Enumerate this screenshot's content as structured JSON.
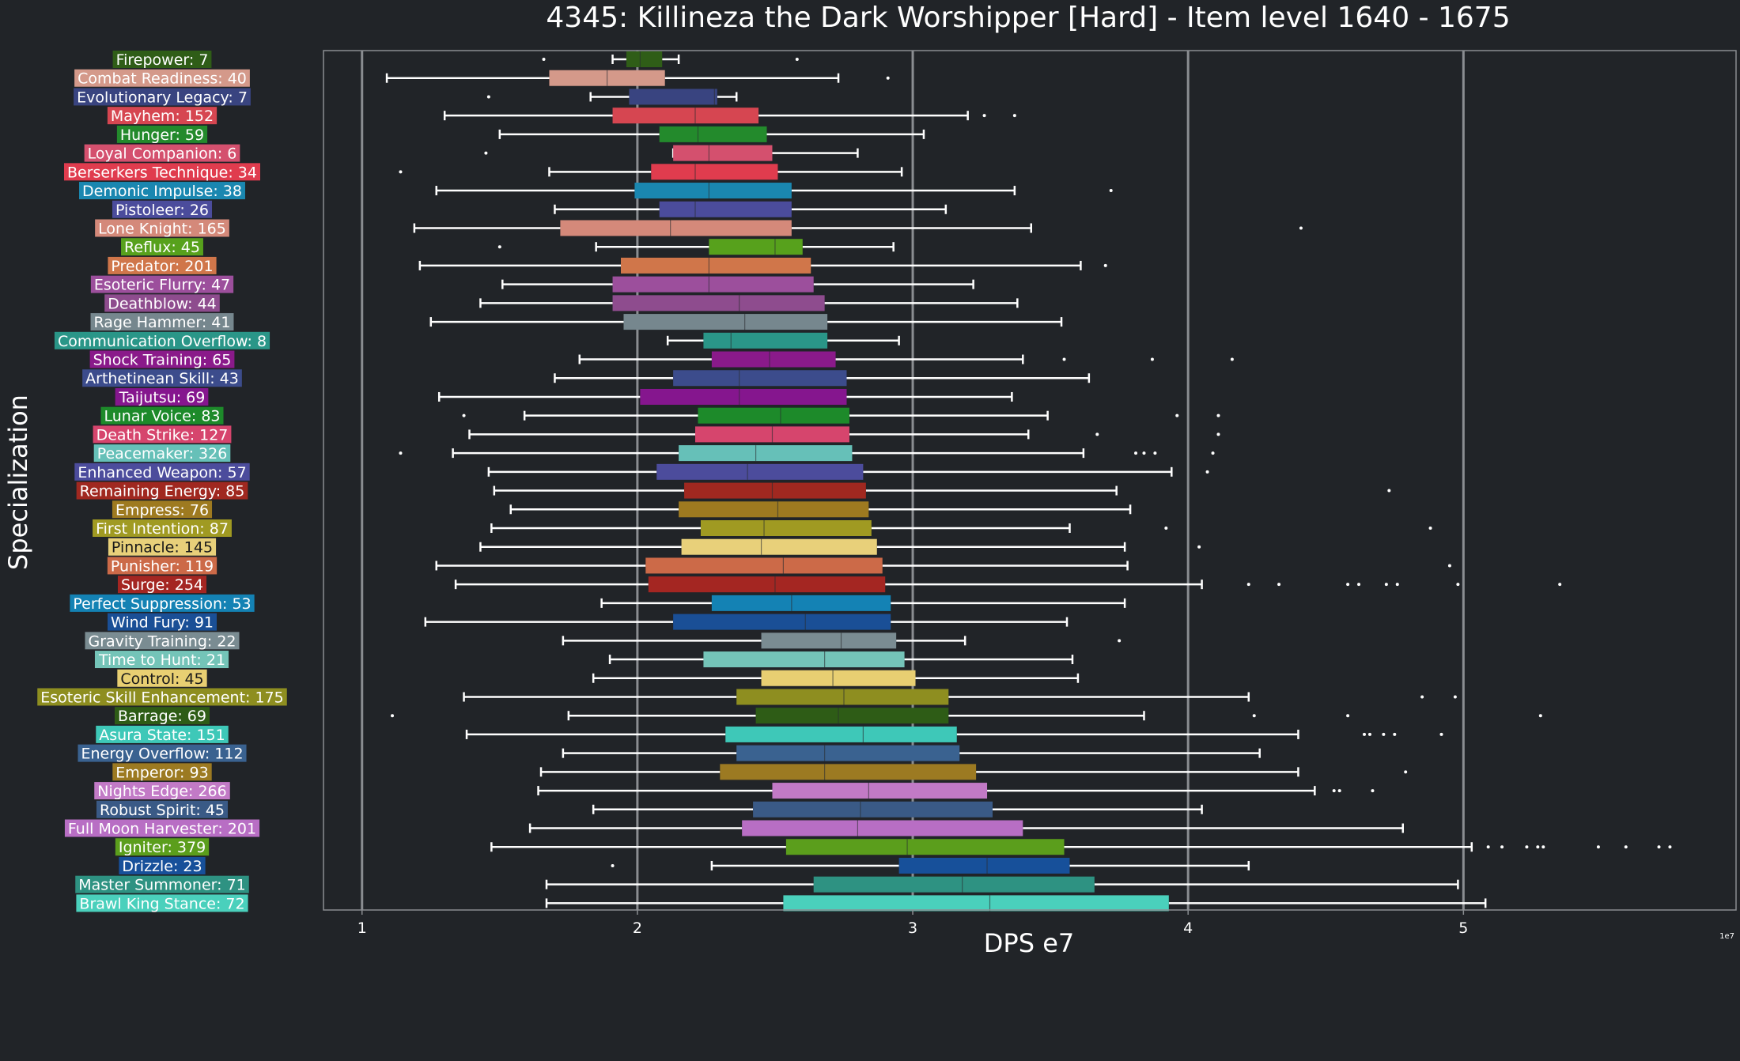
{
  "chart_data": {
    "type": "box",
    "title": "4345: Killineza the Dark Worshipper [Hard] - Item level 1640 - 1675",
    "xlabel": "DPS e7",
    "ylabel": "Specialization",
    "x_offset_label": "1e7",
    "xlim": [
      0.86,
      5.99
    ],
    "xticks": [
      1,
      2,
      3,
      4,
      5
    ],
    "grid": "vertical",
    "colors": {
      "background": "#212428",
      "axis": "#8a8d91",
      "grid": "#8a8d91",
      "text": "#ffffff",
      "whisker": "#ffffff"
    },
    "series": [
      {
        "label": "Firepower: 7",
        "color": "#2f5d17",
        "whisker_low": 1.91,
        "q1": 1.96,
        "median": 2.01,
        "q3": 2.09,
        "whisker_high": 2.15,
        "outliers": [
          1.66,
          2.58
        ]
      },
      {
        "label": "Combat Readiness: 40",
        "color": "#d4998a",
        "whisker_low": 1.09,
        "q1": 1.68,
        "median": 1.89,
        "q3": 2.1,
        "whisker_high": 2.73,
        "outliers": [
          2.91
        ]
      },
      {
        "label": "Evolutionary Legacy: 7",
        "color": "#394480",
        "whisker_low": 1.83,
        "q1": 1.97,
        "median": 2.28,
        "q3": 2.29,
        "whisker_high": 2.36,
        "outliers": [
          1.46
        ]
      },
      {
        "label": "Mayhem: 152",
        "color": "#d64651",
        "whisker_low": 1.3,
        "q1": 1.91,
        "median": 2.21,
        "q3": 2.44,
        "whisker_high": 3.2,
        "outliers": [
          3.26,
          3.37
        ]
      },
      {
        "label": "Hunger: 59",
        "color": "#238a2c",
        "whisker_low": 1.5,
        "q1": 2.08,
        "median": 2.22,
        "q3": 2.47,
        "whisker_high": 3.04,
        "outliers": []
      },
      {
        "label": "Loyal Companion: 6",
        "color": "#d4506e",
        "whisker_low": 2.13,
        "q1": 2.13,
        "median": 2.26,
        "q3": 2.49,
        "whisker_high": 2.8,
        "outliers": [
          1.45
        ]
      },
      {
        "label": "Berserkers Technique: 34",
        "color": "#e03c4e",
        "whisker_low": 1.68,
        "q1": 2.05,
        "median": 2.21,
        "q3": 2.51,
        "whisker_high": 2.96,
        "outliers": [
          1.14
        ]
      },
      {
        "label": "Demonic Impulse: 38",
        "color": "#1a87b0",
        "whisker_low": 1.27,
        "q1": 1.99,
        "median": 2.26,
        "q3": 2.56,
        "whisker_high": 3.37,
        "outliers": [
          3.72
        ]
      },
      {
        "label": "Pistoleer: 26",
        "color": "#4b4c9c",
        "whisker_low": 1.7,
        "q1": 2.08,
        "median": 2.21,
        "q3": 2.56,
        "whisker_high": 3.12,
        "outliers": []
      },
      {
        "label": "Lone Knight: 165",
        "color": "#d4897a",
        "whisker_low": 1.19,
        "q1": 1.72,
        "median": 2.12,
        "q3": 2.56,
        "whisker_high": 3.43,
        "outliers": [
          4.41
        ]
      },
      {
        "label": "Reflux: 45",
        "color": "#57a11c",
        "whisker_low": 1.85,
        "q1": 2.26,
        "median": 2.5,
        "q3": 2.6,
        "whisker_high": 2.93,
        "outliers": [
          1.5
        ]
      },
      {
        "label": "Predator: 201",
        "color": "#d0764a",
        "whisker_low": 1.21,
        "q1": 1.94,
        "median": 2.26,
        "q3": 2.63,
        "whisker_high": 3.61,
        "outliers": [
          3.7
        ]
      },
      {
        "label": "Esoteric Flurry: 47",
        "color": "#9c4f9c",
        "whisker_low": 1.51,
        "q1": 1.91,
        "median": 2.26,
        "q3": 2.64,
        "whisker_high": 3.22,
        "outliers": []
      },
      {
        "label": "Deathblow: 44",
        "color": "#8e4c8e",
        "whisker_low": 1.43,
        "q1": 1.91,
        "median": 2.37,
        "q3": 2.68,
        "whisker_high": 3.38,
        "outliers": []
      },
      {
        "label": "Rage Hammer: 41",
        "color": "#76878e",
        "whisker_low": 1.25,
        "q1": 1.95,
        "median": 2.39,
        "q3": 2.69,
        "whisker_high": 3.54,
        "outliers": []
      },
      {
        "label": "Communication Overflow: 8",
        "color": "#2a9688",
        "whisker_low": 2.11,
        "q1": 2.24,
        "median": 2.34,
        "q3": 2.69,
        "whisker_high": 2.95,
        "outliers": []
      },
      {
        "label": "Shock Training: 65",
        "color": "#8a1a8a",
        "whisker_low": 1.79,
        "q1": 2.27,
        "median": 2.48,
        "q3": 2.72,
        "whisker_high": 3.4,
        "outliers": [
          3.55,
          3.87,
          4.16
        ]
      },
      {
        "label": "Arthetinean Skill: 43",
        "color": "#3c4c8c",
        "whisker_low": 1.7,
        "q1": 2.13,
        "median": 2.37,
        "q3": 2.76,
        "whisker_high": 3.64,
        "outliers": []
      },
      {
        "label": "Taijutsu: 69",
        "color": "#85168e",
        "whisker_low": 1.28,
        "q1": 2.01,
        "median": 2.37,
        "q3": 2.76,
        "whisker_high": 3.36,
        "outliers": []
      },
      {
        "label": "Lunar Voice: 83",
        "color": "#1d8a2a",
        "whisker_low": 1.59,
        "q1": 2.22,
        "median": 2.52,
        "q3": 2.77,
        "whisker_high": 3.49,
        "outliers": [
          1.37,
          3.96,
          4.11
        ]
      },
      {
        "label": "Death Strike: 127",
        "color": "#d6456d",
        "whisker_low": 1.39,
        "q1": 2.21,
        "median": 2.49,
        "q3": 2.77,
        "whisker_high": 3.42,
        "outliers": [
          3.67,
          4.11
        ]
      },
      {
        "label": "Peacemaker: 326",
        "color": "#66c0b8",
        "whisker_low": 1.33,
        "q1": 2.15,
        "median": 2.43,
        "q3": 2.78,
        "whisker_high": 3.62,
        "outliers": [
          1.14,
          3.81,
          3.84,
          3.88,
          4.09
        ]
      },
      {
        "label": "Enhanced Weapon: 57",
        "color": "#4c4c9c",
        "whisker_low": 1.46,
        "q1": 2.07,
        "median": 2.4,
        "q3": 2.82,
        "whisker_high": 3.94,
        "outliers": [
          4.07
        ]
      },
      {
        "label": "Remaining Energy: 85",
        "color": "#a02820",
        "whisker_low": 1.48,
        "q1": 2.17,
        "median": 2.49,
        "q3": 2.83,
        "whisker_high": 3.74,
        "outliers": [
          4.73
        ]
      },
      {
        "label": "Empress: 76",
        "color": "#9e7a20",
        "whisker_low": 1.54,
        "q1": 2.15,
        "median": 2.51,
        "q3": 2.84,
        "whisker_high": 3.79,
        "outliers": []
      },
      {
        "label": "First Intention: 87",
        "color": "#a09a22",
        "whisker_low": 1.47,
        "q1": 2.23,
        "median": 2.46,
        "q3": 2.85,
        "whisker_high": 3.57,
        "outliers": [
          3.92,
          4.88
        ]
      },
      {
        "label": "Pinnacle: 145",
        "color": "#e8d07a",
        "whisker_low": 1.43,
        "q1": 2.16,
        "median": 2.45,
        "q3": 2.87,
        "whisker_high": 3.77,
        "outliers": [
          4.04
        ]
      },
      {
        "label": "Punisher: 119",
        "color": "#cc6a48",
        "whisker_low": 1.27,
        "q1": 2.03,
        "median": 2.53,
        "q3": 2.89,
        "whisker_high": 3.78,
        "outliers": [
          4.95
        ]
      },
      {
        "label": "Surge: 254",
        "color": "#a42622",
        "whisker_low": 1.34,
        "q1": 2.04,
        "median": 2.5,
        "q3": 2.9,
        "whisker_high": 4.05,
        "outliers": [
          4.22,
          4.33,
          4.58,
          4.62,
          4.72,
          4.76,
          4.98,
          5.35
        ]
      },
      {
        "label": "Perfect Suppression: 53",
        "color": "#1482b4",
        "whisker_low": 1.87,
        "q1": 2.27,
        "median": 2.56,
        "q3": 2.92,
        "whisker_high": 3.77,
        "outliers": []
      },
      {
        "label": "Wind Fury: 91",
        "color": "#1a4f96",
        "whisker_low": 1.23,
        "q1": 2.13,
        "median": 2.61,
        "q3": 2.92,
        "whisker_high": 3.56,
        "outliers": []
      },
      {
        "label": "Gravity Training: 22",
        "color": "#7a8c92",
        "whisker_low": 1.73,
        "q1": 2.45,
        "median": 2.74,
        "q3": 2.94,
        "whisker_high": 3.19,
        "outliers": [
          3.75
        ]
      },
      {
        "label": "Time to Hunt: 21",
        "color": "#74c4b8",
        "whisker_low": 1.9,
        "q1": 2.24,
        "median": 2.68,
        "q3": 2.97,
        "whisker_high": 3.58,
        "outliers": []
      },
      {
        "label": "Control: 45",
        "color": "#e8cf72",
        "whisker_low": 1.84,
        "q1": 2.45,
        "median": 2.71,
        "q3": 3.01,
        "whisker_high": 3.6,
        "outliers": []
      },
      {
        "label": "Esoteric Skill Enhancement: 175",
        "color": "#8e8e20",
        "whisker_low": 1.37,
        "q1": 2.36,
        "median": 2.75,
        "q3": 3.13,
        "whisker_high": 4.22,
        "outliers": [
          4.85,
          4.97
        ]
      },
      {
        "label": "Barrage: 69",
        "color": "#2e5c16",
        "whisker_low": 1.75,
        "q1": 2.43,
        "median": 2.73,
        "q3": 3.13,
        "whisker_high": 3.84,
        "outliers": [
          1.11,
          4.24,
          4.58,
          5.28
        ]
      },
      {
        "label": "Asura State: 151",
        "color": "#3ec8b8",
        "whisker_low": 1.38,
        "q1": 2.32,
        "median": 2.82,
        "q3": 3.16,
        "whisker_high": 4.4,
        "outliers": [
          4.64,
          4.66,
          4.71,
          4.75,
          4.92
        ]
      },
      {
        "label": "Energy Overflow: 112",
        "color": "#3a6290",
        "whisker_low": 1.73,
        "q1": 2.36,
        "median": 2.68,
        "q3": 3.17,
        "whisker_high": 4.26,
        "outliers": []
      },
      {
        "label": "Emperor: 93",
        "color": "#9c7a22",
        "whisker_low": 1.65,
        "q1": 2.3,
        "median": 2.68,
        "q3": 3.23,
        "whisker_high": 4.4,
        "outliers": [
          4.79
        ]
      },
      {
        "label": "Nights Edge: 266",
        "color": "#c27ac6",
        "whisker_low": 1.64,
        "q1": 2.49,
        "median": 2.84,
        "q3": 3.27,
        "whisker_high": 4.46,
        "outliers": [
          4.53,
          4.55,
          4.67
        ]
      },
      {
        "label": "Robust Spirit: 45",
        "color": "#3a5a86",
        "whisker_low": 1.84,
        "q1": 2.42,
        "median": 2.81,
        "q3": 3.29,
        "whisker_high": 4.05,
        "outliers": []
      },
      {
        "label": "Full Moon Harvester: 201",
        "color": "#b86ec4",
        "whisker_low": 1.61,
        "q1": 2.38,
        "median": 2.8,
        "q3": 3.4,
        "whisker_high": 4.78,
        "outliers": []
      },
      {
        "label": "Igniter: 379",
        "color": "#5b9e1c",
        "whisker_low": 1.47,
        "q1": 2.54,
        "median": 2.98,
        "q3": 3.55,
        "whisker_high": 5.03,
        "outliers": [
          5.09,
          5.14,
          5.23,
          5.27,
          5.29,
          5.49,
          5.59,
          5.71,
          5.75
        ]
      },
      {
        "label": "Drizzle: 23",
        "color": "#17509a",
        "whisker_low": 2.27,
        "q1": 2.95,
        "median": 3.27,
        "q3": 3.57,
        "whisker_high": 4.22,
        "outliers": [
          1.91
        ]
      },
      {
        "label": "Master Summoner: 71",
        "color": "#2e9282",
        "whisker_low": 1.67,
        "q1": 2.64,
        "median": 3.18,
        "q3": 3.66,
        "whisker_high": 4.98,
        "outliers": []
      },
      {
        "label": "Brawl King Stance: 72",
        "color": "#4ad0bc",
        "whisker_low": 1.67,
        "q1": 2.53,
        "median": 3.28,
        "q3": 3.93,
        "whisker_high": 5.08,
        "outliers": []
      }
    ]
  }
}
